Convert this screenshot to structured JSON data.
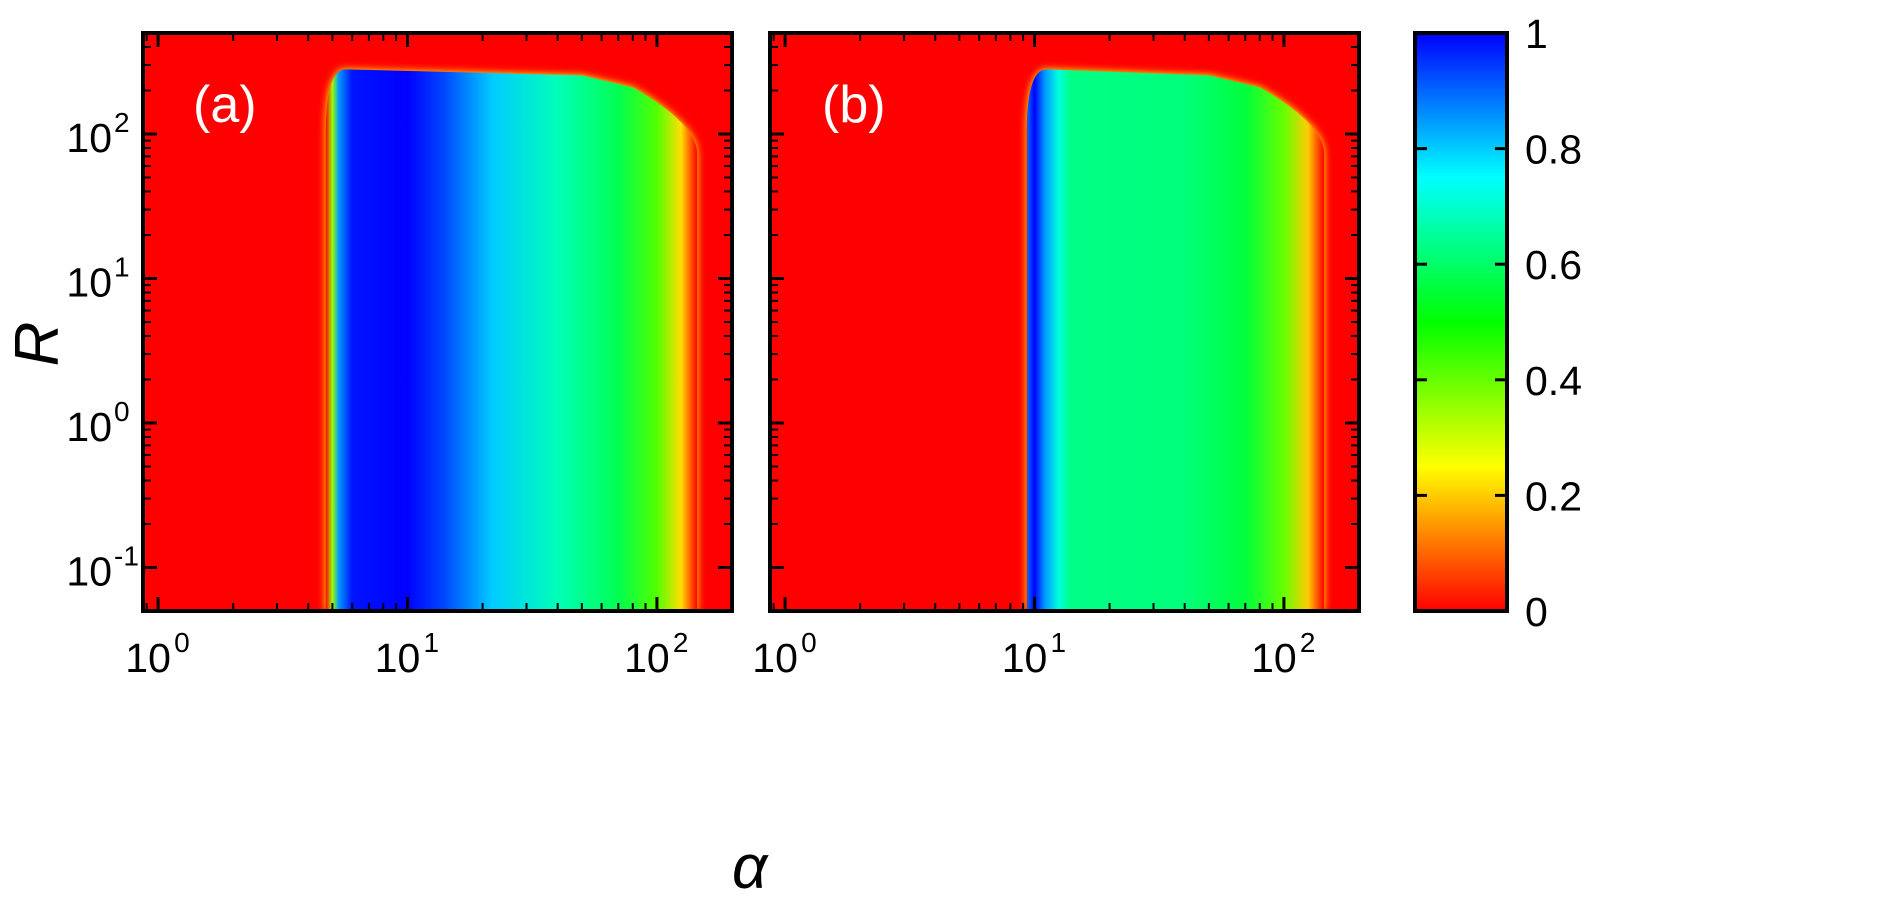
{
  "chart_data": [
    {
      "type": "heatmap",
      "panel_label": "(a)",
      "xlabel": "α",
      "ylabel": "R",
      "x_scale": "log",
      "y_scale": "log",
      "xlim": [
        0.87,
        200
      ],
      "ylim": [
        0.05,
        500
      ],
      "x_ticks": [
        {
          "base": "10",
          "exp": "0"
        },
        {
          "base": "10",
          "exp": "1"
        },
        {
          "base": "10",
          "exp": "2"
        }
      ],
      "y_ticks": [
        {
          "base": "10",
          "exp": "-1"
        },
        {
          "base": "10",
          "exp": "0"
        },
        {
          "base": "10",
          "exp": "1"
        },
        {
          "base": "10",
          "exp": "2"
        }
      ],
      "region": {
        "alpha_onset": 4.7,
        "r_top": 280,
        "profile_vs_alpha": [
          {
            "alpha": 4.7,
            "value": 0.0
          },
          {
            "alpha": 5.0,
            "value": 0.35
          },
          {
            "alpha": 5.3,
            "value": 0.85
          },
          {
            "alpha": 6.0,
            "value": 0.98
          },
          {
            "alpha": 10.0,
            "value": 1.0
          },
          {
            "alpha": 14.0,
            "value": 0.93
          },
          {
            "alpha": 22.0,
            "value": 0.8
          },
          {
            "alpha": 40.0,
            "value": 0.68
          },
          {
            "alpha": 70.0,
            "value": 0.58
          },
          {
            "alpha": 100.0,
            "value": 0.42
          },
          {
            "alpha": 125.0,
            "value": 0.22
          },
          {
            "alpha": 145.0,
            "value": 0.0
          }
        ]
      }
    },
    {
      "type": "heatmap",
      "panel_label": "(b)",
      "xlabel": "α",
      "ylabel": "R",
      "x_scale": "log",
      "y_scale": "log",
      "xlim": [
        0.87,
        200
      ],
      "ylim": [
        0.05,
        500
      ],
      "x_ticks": [
        {
          "base": "10",
          "exp": "0"
        },
        {
          "base": "10",
          "exp": "1"
        },
        {
          "base": "10",
          "exp": "2"
        }
      ],
      "y_ticks": [
        {
          "base": "10",
          "exp": "-1"
        },
        {
          "base": "10",
          "exp": "0"
        },
        {
          "base": "10",
          "exp": "1"
        },
        {
          "base": "10",
          "exp": "2"
        }
      ],
      "region": {
        "alpha_onset": 9.3,
        "r_top": 280,
        "profile_vs_alpha": [
          {
            "alpha": 9.3,
            "value": 0.0
          },
          {
            "alpha": 9.4,
            "value": 0.9
          },
          {
            "alpha": 10.0,
            "value": 1.0
          },
          {
            "alpha": 11.0,
            "value": 0.85
          },
          {
            "alpha": 12.5,
            "value": 0.72
          },
          {
            "alpha": 14.0,
            "value": 0.63
          },
          {
            "alpha": 40.0,
            "value": 0.62
          },
          {
            "alpha": 70.0,
            "value": 0.56
          },
          {
            "alpha": 100.0,
            "value": 0.4
          },
          {
            "alpha": 125.0,
            "value": 0.2
          },
          {
            "alpha": 145.0,
            "value": 0.0
          }
        ]
      }
    }
  ],
  "colorbar": {
    "min": 0,
    "max": 1,
    "ticks": [
      "0",
      "0.2",
      "0.4",
      "0.6",
      "0.8",
      "1"
    ],
    "colormap": [
      "#ff0000",
      "#ffff00",
      "#00ff00",
      "#00ffff",
      "#0000ff"
    ]
  },
  "axes": {
    "xlabel": "α",
    "ylabel": "R"
  }
}
